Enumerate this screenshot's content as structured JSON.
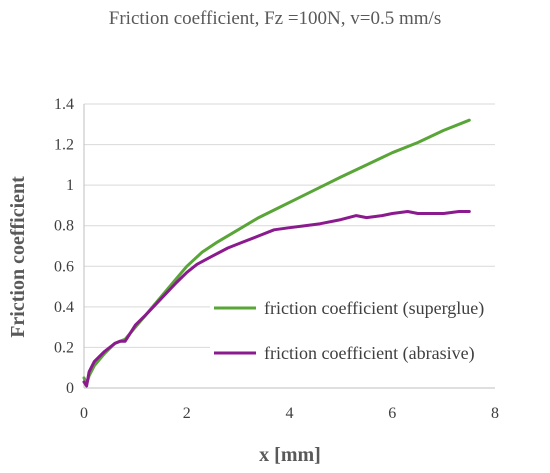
{
  "chart_data": {
    "type": "line",
    "title": "Friction coefficient,  Fz =100N, v=0.5 mm/s",
    "xlabel": "x [mm]",
    "ylabel": "Friction coefficient",
    "xlim": [
      0,
      8
    ],
    "ylim": [
      0,
      1.4
    ],
    "xticks": [
      "0",
      "2",
      "4",
      "6",
      "8"
    ],
    "yticks": [
      "0",
      "0.2",
      "0.4",
      "0.6",
      "0.8",
      "1",
      "1.2",
      "1.4"
    ],
    "grid": true,
    "legend_position": "bottom-right",
    "series": [
      {
        "name": "friction coefficient (superglue)",
        "color": "#59a538",
        "x": [
          0.0,
          0.05,
          0.1,
          0.2,
          0.4,
          0.6,
          0.7,
          0.8,
          1.0,
          1.2,
          1.5,
          1.8,
          2.0,
          2.3,
          2.6,
          3.0,
          3.4,
          3.8,
          4.2,
          4.6,
          5.0,
          5.5,
          6.0,
          6.5,
          7.0,
          7.5
        ],
        "y": [
          0.05,
          0.02,
          0.06,
          0.11,
          0.17,
          0.22,
          0.23,
          0.24,
          0.3,
          0.36,
          0.45,
          0.54,
          0.6,
          0.67,
          0.72,
          0.78,
          0.84,
          0.89,
          0.94,
          0.99,
          1.04,
          1.1,
          1.16,
          1.21,
          1.27,
          1.32
        ]
      },
      {
        "name": "friction coefficient (abrasive)",
        "color": "#8b1a8f",
        "x": [
          0.0,
          0.05,
          0.1,
          0.2,
          0.4,
          0.6,
          0.7,
          0.8,
          1.0,
          1.2,
          1.5,
          1.8,
          2.0,
          2.2,
          2.5,
          2.8,
          3.1,
          3.4,
          3.7,
          4.0,
          4.3,
          4.6,
          5.0,
          5.3,
          5.5,
          5.8,
          6.0,
          6.3,
          6.5,
          6.8,
          7.0,
          7.3,
          7.5
        ],
        "y": [
          0.03,
          0.01,
          0.08,
          0.13,
          0.18,
          0.22,
          0.23,
          0.23,
          0.31,
          0.36,
          0.44,
          0.52,
          0.57,
          0.61,
          0.65,
          0.69,
          0.72,
          0.75,
          0.78,
          0.79,
          0.8,
          0.81,
          0.83,
          0.85,
          0.84,
          0.85,
          0.86,
          0.87,
          0.86,
          0.86,
          0.86,
          0.87,
          0.87
        ]
      }
    ]
  }
}
